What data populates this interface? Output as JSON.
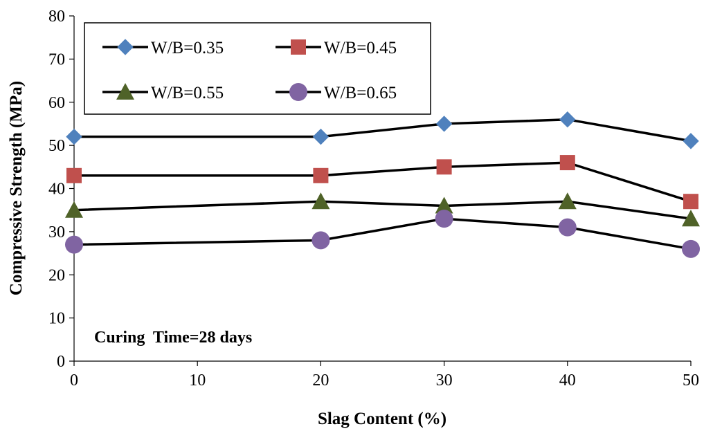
{
  "chart_data": {
    "type": "line",
    "title": "",
    "xlabel": "Slag Content (%)",
    "ylabel": "Compressive Strength (MPa)",
    "xlim": [
      0,
      50
    ],
    "ylim": [
      0,
      80
    ],
    "x_ticks": [
      0,
      10,
      20,
      30,
      40,
      50
    ],
    "y_ticks": [
      0,
      10,
      20,
      30,
      40,
      50,
      60,
      70,
      80
    ],
    "grid": false,
    "legend_position": "top-left",
    "x": [
      0,
      20,
      30,
      40,
      50
    ],
    "series": [
      {
        "name": "W/B=0.35",
        "values": [
          52,
          52,
          55,
          56,
          51
        ],
        "marker": "diamond",
        "color": "#4F81BD"
      },
      {
        "name": "W/B=0.45",
        "values": [
          43,
          43,
          45,
          46,
          37
        ],
        "marker": "square",
        "color": "#C0504D"
      },
      {
        "name": "W/B=0.55",
        "values": [
          35,
          37,
          36,
          37,
          33
        ],
        "marker": "triangle",
        "color": "#4F6228"
      },
      {
        "name": "W/B=0.65",
        "values": [
          27,
          28,
          33,
          31,
          26
        ],
        "marker": "circle",
        "color": "#8064A2"
      }
    ],
    "annotation": "Curing  Time=28 days",
    "line_color": "#000000"
  }
}
